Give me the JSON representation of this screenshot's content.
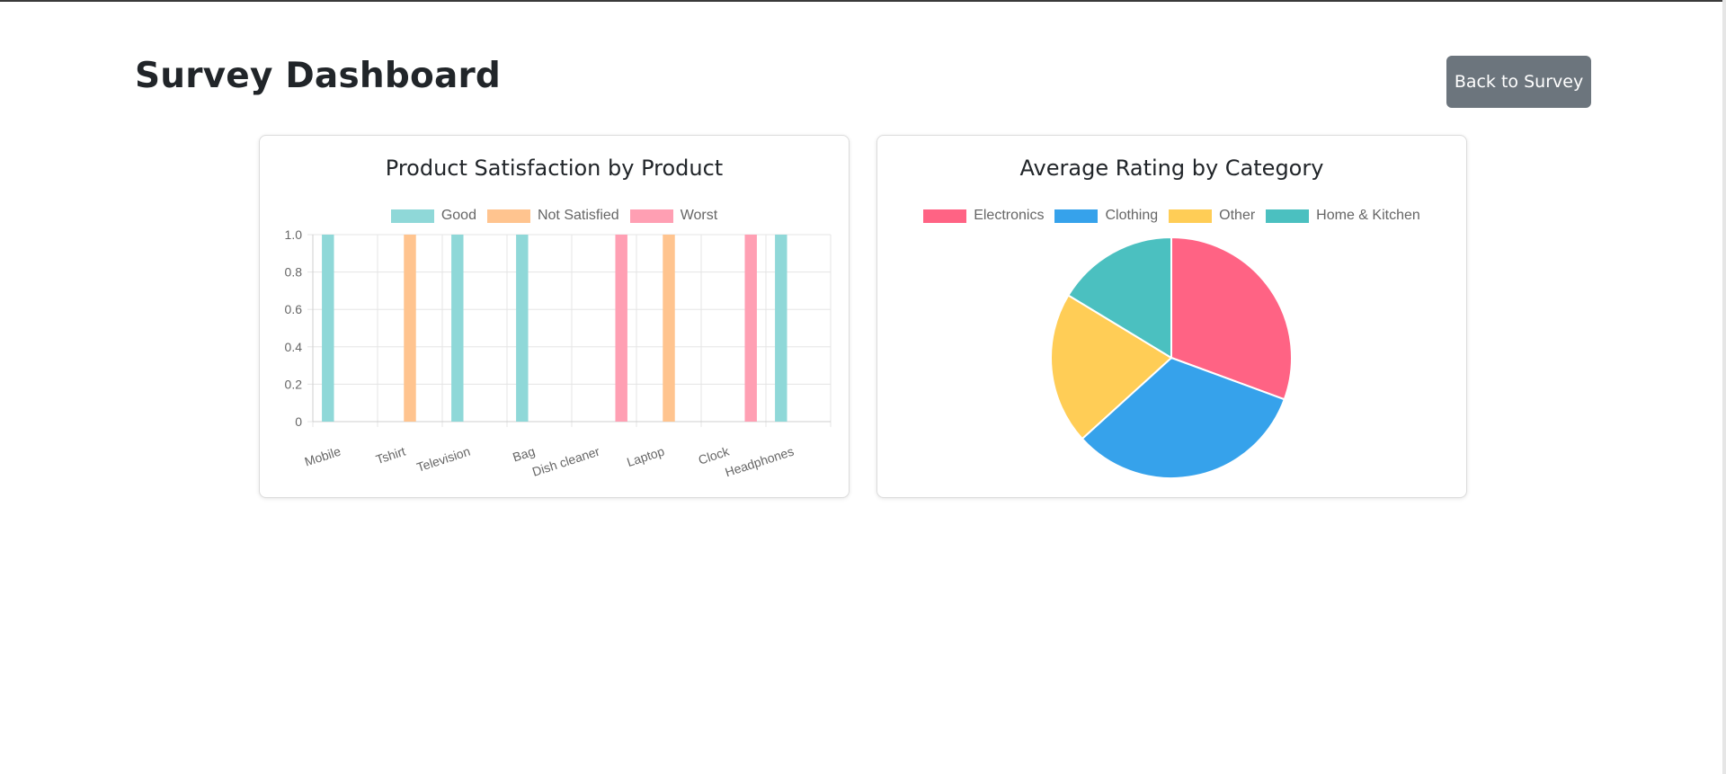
{
  "header": {
    "title": "Survey Dashboard",
    "back_button_label": "Back to Survey"
  },
  "chart_data": [
    {
      "type": "bar",
      "title": "Product Satisfaction by Product",
      "categories": [
        "Mobile",
        "Tshirt",
        "Television",
        "Bag",
        "Dish cleaner",
        "Laptop",
        "Clock",
        "Headphones"
      ],
      "series": [
        {
          "name": "Good",
          "color": "#8fd8d8",
          "values": [
            1,
            0,
            1,
            1,
            0,
            0,
            0,
            1
          ]
        },
        {
          "name": "Not Satisfied",
          "color": "#ffc48f",
          "values": [
            0,
            1,
            0,
            0,
            0,
            1,
            0,
            0
          ]
        },
        {
          "name": "Worst",
          "color": "#ff9fb3",
          "values": [
            0,
            0,
            0,
            0,
            1,
            0,
            1,
            0
          ]
        }
      ],
      "ylim": [
        0,
        1
      ],
      "yticks": [
        "0",
        "0.2",
        "0.4",
        "0.6",
        "0.8",
        "1.0"
      ],
      "grid": true,
      "legend_position": "top"
    },
    {
      "type": "pie",
      "title": "Average Rating by Category",
      "labels": [
        "Electronics",
        "Clothing",
        "Other",
        "Home & Kitchen"
      ],
      "colors": [
        "#ff6384",
        "#36a2eb",
        "#ffcd56",
        "#4bc0c0"
      ],
      "values": [
        3.0,
        3.2,
        2.0,
        1.6
      ],
      "legend_position": "top"
    }
  ]
}
